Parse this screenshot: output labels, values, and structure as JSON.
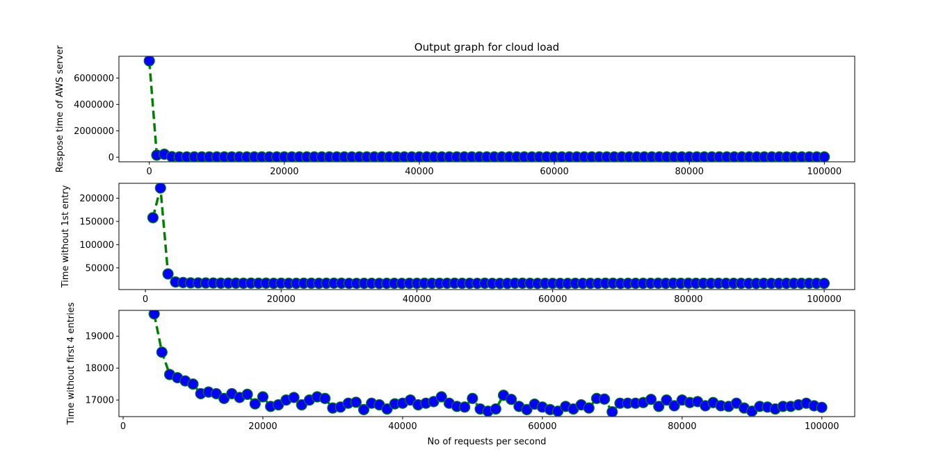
{
  "chart_data": [
    {
      "type": "line",
      "title": "Output graph for cloud load",
      "xlabel": "",
      "ylabel": "Respose time of AWS server",
      "xlim": [
        -4500,
        104500
      ],
      "ylim": [
        -350000,
        7650000
      ],
      "xticks": [
        0,
        20000,
        40000,
        60000,
        80000,
        100000
      ],
      "yticks": [
        0,
        2000000,
        4000000,
        6000000
      ],
      "ytick_labels": [
        "0",
        "2000000",
        "4000000",
        "6000000"
      ],
      "colors": {
        "line": "#008000",
        "marker": "#0000ff",
        "marker_edge": "#008000"
      },
      "x_start": 0,
      "x_step": 1111,
      "values": [
        7300000,
        158000,
        222000,
        37000,
        19700,
        18500,
        17800,
        17700,
        17600,
        17500,
        17200,
        17250,
        17200,
        17050,
        17200,
        17080,
        17180,
        16880,
        17100,
        16800,
        16850,
        17000,
        17080,
        16850,
        17000,
        17100,
        17050,
        16750,
        16780,
        16900,
        16930,
        16700,
        16900,
        16850,
        16720,
        16880,
        16900,
        17000,
        16850,
        16900,
        16950,
        17100,
        16900,
        16800,
        16780,
        17050,
        16720,
        16650,
        16720,
        17150,
        17020,
        16800,
        16700,
        16870,
        16780,
        16700,
        16650,
        16800,
        16720,
        16850,
        16750,
        17050,
        17030,
        16630,
        16900,
        16900,
        16900,
        16920,
        17020,
        16800,
        17000,
        16820,
        17000,
        16920,
        16950,
        16820,
        16920,
        16820,
        16800,
        16900,
        16750,
        16650,
        16800,
        16780,
        16720,
        16800,
        16800,
        16850,
        16900,
        16820,
        16770
      ]
    },
    {
      "type": "line",
      "title": "",
      "xlabel": "",
      "ylabel": "Time without 1st entry",
      "xlim": [
        -3900,
        104500
      ],
      "ylim": [
        3400,
        232000
      ],
      "xticks": [
        0,
        20000,
        40000,
        60000,
        80000,
        100000
      ],
      "yticks": [
        50000,
        100000,
        150000,
        200000
      ],
      "ytick_labels": [
        "50000",
        "100000",
        "150000",
        "200000"
      ],
      "colors": {
        "line": "#008000",
        "marker": "#0000ff",
        "marker_edge": "#008000"
      },
      "x_start": 1111,
      "x_step": 1111,
      "values": [
        158000,
        222000,
        37000,
        19700,
        18500,
        17800,
        17700,
        17600,
        17500,
        17200,
        17250,
        17200,
        17050,
        17200,
        17080,
        17180,
        16880,
        17100,
        16800,
        16850,
        17000,
        17080,
        16850,
        17000,
        17100,
        17050,
        16750,
        16780,
        16900,
        16930,
        16700,
        16900,
        16850,
        16720,
        16880,
        16900,
        17000,
        16850,
        16900,
        16950,
        17100,
        16900,
        16800,
        16780,
        17050,
        16720,
        16650,
        16720,
        17150,
        17020,
        16800,
        16700,
        16870,
        16780,
        16700,
        16650,
        16800,
        16720,
        16850,
        16750,
        17050,
        17030,
        16630,
        16900,
        16900,
        16900,
        16920,
        17020,
        16800,
        17000,
        16820,
        17000,
        16920,
        16950,
        16820,
        16920,
        16820,
        16800,
        16900,
        16750,
        16650,
        16800,
        16780,
        16720,
        16800,
        16800,
        16850,
        16900,
        16820,
        16770
      ]
    },
    {
      "type": "line",
      "title": "",
      "xlabel": "No of requests per second",
      "ylabel": "Time without first 4 entries",
      "xlim": [
        -600,
        104700
      ],
      "ylim": [
        16480,
        19810
      ],
      "xticks": [
        0,
        20000,
        40000,
        60000,
        80000,
        100000
      ],
      "yticks": [
        17000,
        18000,
        19000
      ],
      "ytick_labels": [
        "17000",
        "18000",
        "19000"
      ],
      "colors": {
        "line": "#008000",
        "marker": "#0000ff",
        "marker_edge": "#008000"
      },
      "x_start": 4444,
      "x_step": 1111,
      "values": [
        19700,
        18500,
        17800,
        17700,
        17600,
        17500,
        17200,
        17250,
        17200,
        17050,
        17200,
        17080,
        17180,
        16880,
        17100,
        16800,
        16850,
        17000,
        17080,
        16850,
        17000,
        17100,
        17050,
        16750,
        16780,
        16900,
        16930,
        16700,
        16900,
        16850,
        16720,
        16880,
        16900,
        17000,
        16850,
        16900,
        16950,
        17100,
        16900,
        16800,
        16780,
        17050,
        16720,
        16650,
        16720,
        17150,
        17020,
        16800,
        16700,
        16870,
        16780,
        16700,
        16650,
        16800,
        16720,
        16850,
        16750,
        17050,
        17030,
        16630,
        16900,
        16900,
        16900,
        16920,
        17020,
        16800,
        17000,
        16820,
        17000,
        16920,
        16950,
        16820,
        16920,
        16820,
        16800,
        16900,
        16750,
        16650,
        16800,
        16780,
        16720,
        16800,
        16800,
        16850,
        16900,
        16820,
        16770
      ]
    }
  ]
}
